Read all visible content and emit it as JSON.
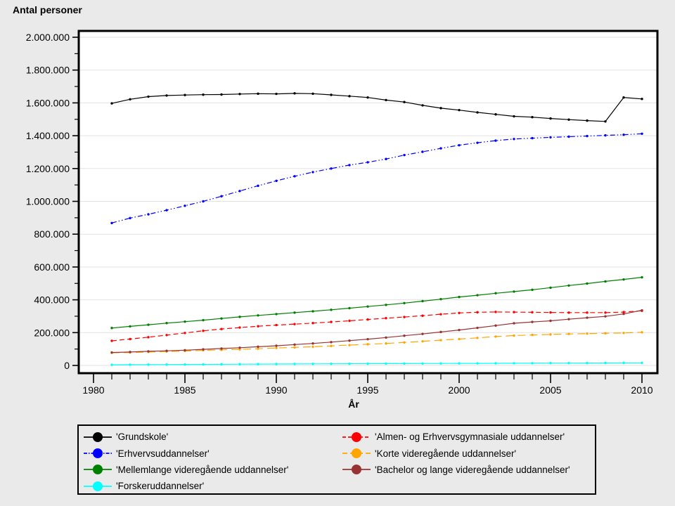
{
  "title": "Antal personer",
  "xaxis_title": "År",
  "figure": {
    "background": "#EAEAEA",
    "plot_background": "#FFFFFF",
    "grid_color": "#E2E2E2",
    "frame_color": "#000000"
  },
  "chart_data": {
    "type": "line",
    "title": "Antal personer",
    "xlabel": "År",
    "ylabel": "Antal personer",
    "xlim": [
      1979.2,
      2010.8
    ],
    "ylim": [
      0,
      2000000
    ],
    "grid": "horizontal-only",
    "legend_position": "bottom",
    "xticks_major": [
      1980,
      1985,
      1990,
      1995,
      2000,
      2005,
      2010
    ],
    "xtick_labels": [
      "1980",
      "1985",
      "1990",
      "1995",
      "2000",
      "2005",
      "2010"
    ],
    "xticks_minor_interval": 1,
    "yticks_major_interval": 200000,
    "yticks_minor_interval": 100000,
    "ytick_labels": [
      "0",
      "200.000",
      "400.000",
      "600.000",
      "800.000",
      "1.000.000",
      "1.200.000",
      "1.400.000",
      "1.600.000",
      "1.800.000",
      "2.000.000"
    ],
    "x": [
      1981,
      1982,
      1983,
      1984,
      1985,
      1986,
      1987,
      1988,
      1989,
      1990,
      1991,
      1992,
      1993,
      1994,
      1995,
      1996,
      1997,
      1998,
      1999,
      2000,
      2001,
      2002,
      2003,
      2004,
      2005,
      2006,
      2007,
      2008,
      2009,
      2010
    ],
    "series": [
      {
        "name": "'Grundskole'",
        "color": "#000000",
        "dash": "solid",
        "values": [
          1597000,
          1622000,
          1638000,
          1645000,
          1648000,
          1650000,
          1651000,
          1654000,
          1656000,
          1655000,
          1658000,
          1656000,
          1649000,
          1641000,
          1633000,
          1617000,
          1605000,
          1585000,
          1568000,
          1556000,
          1542000,
          1530000,
          1518000,
          1513000,
          1505000,
          1498000,
          1492000,
          1487000,
          1633000,
          1624000
        ]
      },
      {
        "name": "'Erhvervsuddannelser'",
        "color": "#0000FF",
        "dash": "dash-dot-dot",
        "values": [
          868000,
          898000,
          921000,
          946000,
          973000,
          1000000,
          1031000,
          1063000,
          1095000,
          1125000,
          1153000,
          1178000,
          1200000,
          1221000,
          1238000,
          1258000,
          1282000,
          1302000,
          1323000,
          1342000,
          1357000,
          1370000,
          1380000,
          1385000,
          1390000,
          1394000,
          1398000,
          1402000,
          1406000,
          1412000
        ]
      },
      {
        "name": "'Mellemlange videregående uddannelser'",
        "color": "#008000",
        "dash": "solid",
        "values": [
          228000,
          238000,
          248000,
          258000,
          267000,
          276000,
          286000,
          296000,
          305000,
          313000,
          322000,
          330000,
          339000,
          349000,
          359000,
          369000,
          380000,
          392000,
          404000,
          417000,
          428000,
          440000,
          450000,
          461000,
          474000,
          487000,
          499000,
          512000,
          524000,
          537000
        ]
      },
      {
        "name": "'Forskeruddannelser'",
        "color": "#00FFFF",
        "dash": "solid",
        "values": [
          4000,
          4500,
          5000,
          5500,
          6000,
          6500,
          7000,
          7500,
          8000,
          8500,
          9000,
          9500,
          10000,
          10300,
          10600,
          11000,
          11300,
          11600,
          12000,
          12300,
          12600,
          13000,
          13300,
          13600,
          14000,
          14300,
          14600,
          15000,
          15500,
          16000
        ]
      },
      {
        "name": "'Almen- og Erhvervsgymnasiale uddannelser'",
        "color": "#FF0000",
        "dash": "dashed",
        "values": [
          150000,
          161000,
          172000,
          185000,
          198000,
          211000,
          222000,
          231000,
          239000,
          246000,
          252000,
          258000,
          265000,
          272000,
          280000,
          288000,
          295000,
          303000,
          312000,
          320000,
          324000,
          326000,
          325000,
          324000,
          323000,
          322000,
          322000,
          322000,
          325000,
          333000
        ]
      },
      {
        "name": "'Korte videregående uddannelser'",
        "color": "#FFA500",
        "dash": "long-dash",
        "values": [
          77000,
          79000,
          82000,
          85000,
          88000,
          92000,
          95000,
          98000,
          102000,
          106000,
          110000,
          114000,
          119000,
          124000,
          129000,
          134000,
          140000,
          147000,
          154000,
          161000,
          168000,
          176000,
          182000,
          186000,
          189000,
          192000,
          194000,
          196000,
          198000,
          202000
        ]
      },
      {
        "name": "'Bachelor og lange videregående uddannelser'",
        "color": "#993333",
        "dash": "solid",
        "values": [
          79000,
          82000,
          86000,
          89000,
          93000,
          98000,
          103000,
          108000,
          114000,
          120000,
          127000,
          134000,
          142000,
          151000,
          160000,
          170000,
          181000,
          192000,
          204000,
          216000,
          229000,
          243000,
          257000,
          265000,
          272000,
          282000,
          291000,
          299000,
          314000,
          336000
        ]
      }
    ],
    "legend_columns": [
      [
        0,
        1,
        2,
        3
      ],
      [
        4,
        5,
        6
      ]
    ]
  }
}
